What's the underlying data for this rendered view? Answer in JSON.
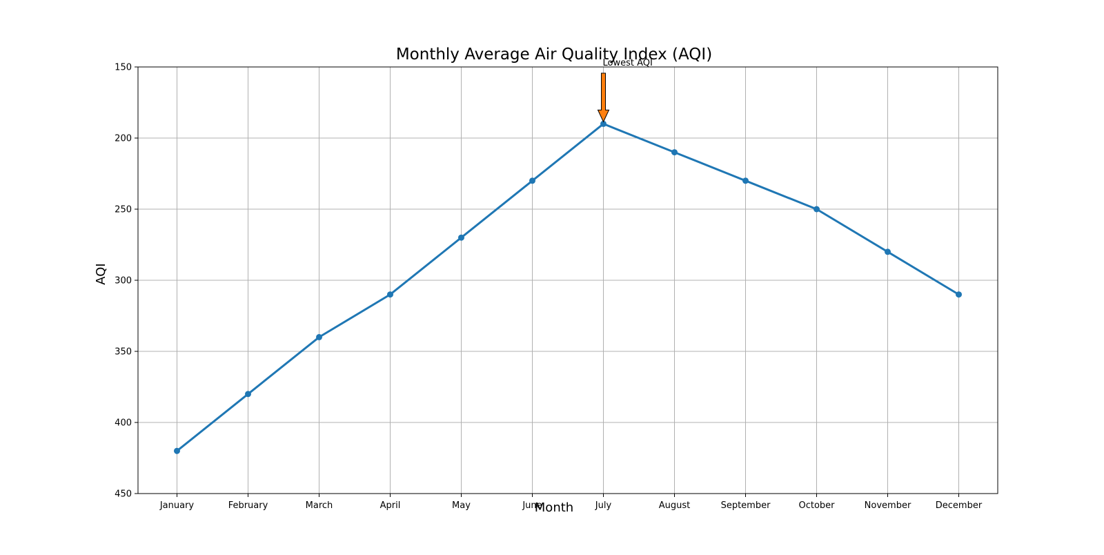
{
  "chart_data": {
    "type": "line",
    "title": "Monthly Average Air Quality Index (AQI)",
    "xlabel": "Month",
    "ylabel": "AQI",
    "categories": [
      "January",
      "February",
      "March",
      "April",
      "May",
      "June",
      "July",
      "August",
      "September",
      "October",
      "November",
      "December"
    ],
    "series": [
      {
        "values": [
          420,
          380,
          340,
          310,
          270,
          230,
          190,
          210,
          230,
          250,
          280,
          310
        ],
        "color": "#1f77b4",
        "marker": "circle"
      }
    ],
    "ylim": [
      150,
      450
    ],
    "y_inverted": true,
    "yticks": [
      150,
      200,
      250,
      300,
      350,
      400,
      450
    ],
    "grid": true,
    "legend": "none",
    "annotations": [
      {
        "text": "Lowest AQI",
        "x": "July",
        "y": 190,
        "arrow": "down",
        "arrow_color": "#ff7f0e"
      }
    ]
  },
  "colors": {
    "line": "#1f77b4",
    "arrow": "#ff7f0e",
    "grid": "#b0b0b0",
    "axes": "#000000",
    "background": "#ffffff"
  }
}
